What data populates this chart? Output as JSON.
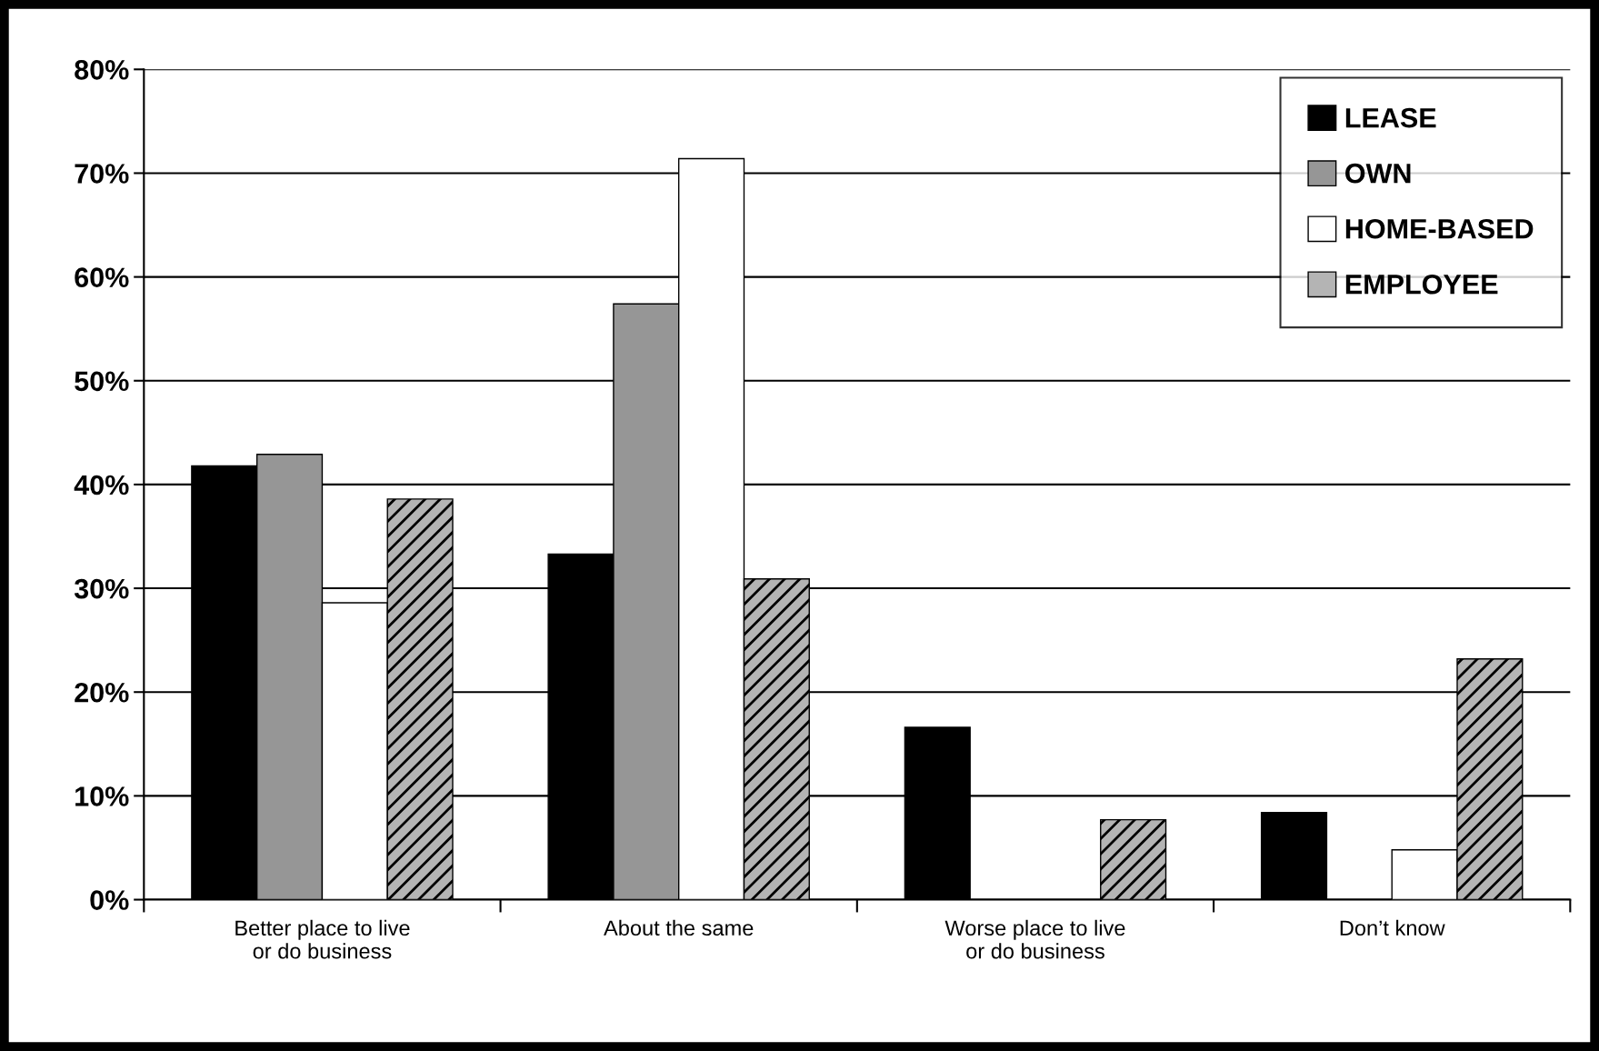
{
  "chart_data": {
    "type": "bar",
    "categories": [
      "Better place to live\nor do business",
      "About the same",
      "Worse place to live\nor do business",
      "Don’t know"
    ],
    "series": [
      {
        "name": "LEASE",
        "color": "#000000",
        "values": [
          41.8,
          33.3,
          16.6,
          8.4
        ]
      },
      {
        "name": "OWN",
        "color": "#969696",
        "values": [
          42.9,
          57.4,
          null,
          null
        ]
      },
      {
        "name": "HOME-BASED",
        "color": "#ffffff",
        "values": [
          28.6,
          71.4,
          null,
          4.8
        ]
      },
      {
        "name": "EMPLOYEE",
        "color": "#b4b4b4",
        "values": [
          38.6,
          30.9,
          7.7,
          23.2
        ]
      }
    ],
    "ylim": [
      0,
      80
    ],
    "yticks": [
      {
        "value": 0,
        "label": "0%"
      },
      {
        "value": 10,
        "label": "10%"
      },
      {
        "value": 20,
        "label": "20%"
      },
      {
        "value": 30,
        "label": "30%"
      },
      {
        "value": 40,
        "label": "40%"
      },
      {
        "value": 50,
        "label": "50%"
      },
      {
        "value": 60,
        "label": "60%"
      },
      {
        "value": 70,
        "label": "70%"
      },
      {
        "value": 80,
        "label": "80%"
      }
    ],
    "grid": "y",
    "legend": "top right"
  }
}
